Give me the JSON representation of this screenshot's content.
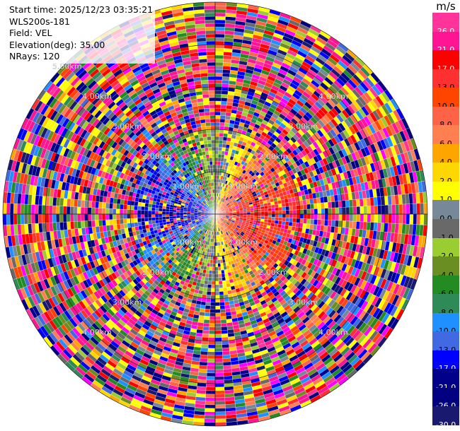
{
  "info": {
    "start_time": "Start time: 2025/12/23 03:35:21",
    "instrument": "WLS200s-181",
    "field": "Field: VEL",
    "elevation": "Elevation(deg): 35.00",
    "nrays": "NRays: 120"
  },
  "colorbar": {
    "unit": "m/s",
    "bins": [
      {
        "label": "26.0",
        "color": "#ff3399"
      },
      {
        "label": "21.0",
        "color": "#ff1493"
      },
      {
        "label": "17.0",
        "color": "#ff0000"
      },
      {
        "label": "13.0",
        "color": "#ff3030"
      },
      {
        "label": "10.0",
        "color": "#ff4500"
      },
      {
        "label": "8.0",
        "color": "#ff6347"
      },
      {
        "label": "6.0",
        "color": "#ff7f50"
      },
      {
        "label": "4.0",
        "color": "#ffa500"
      },
      {
        "label": "2.0",
        "color": "#ffd700"
      },
      {
        "label": "1.0",
        "color": "#ffff00"
      },
      {
        "label": "0.0",
        "color": "#778899"
      },
      {
        "label": "-1.0",
        "color": "#696969"
      },
      {
        "label": "-2.0",
        "color": "#9acd32"
      },
      {
        "label": "-4.0",
        "color": "#6b8e23"
      },
      {
        "label": "-6.0",
        "color": "#228b22"
      },
      {
        "label": "-8.0",
        "color": "#2e8b57"
      },
      {
        "label": "-10.0",
        "color": "#1e90ff"
      },
      {
        "label": "-13.0",
        "color": "#4169e1"
      },
      {
        "label": "-17.0",
        "color": "#0000ff"
      },
      {
        "label": "-21.0",
        "color": "#00008b"
      },
      {
        "label": "-26.0",
        "color": "#000080"
      },
      {
        "label": "-30.0",
        "color": "#191970"
      }
    ]
  },
  "chart_data": {
    "type": "heatmap",
    "projection": "polar-ppi",
    "field": "VEL",
    "elevation_deg": 35.0,
    "nrays": 120,
    "range_max_km": 5.0,
    "range_rings_km": [
      1,
      2,
      3,
      4,
      5
    ],
    "ring_labels": [
      "1.00km",
      "2.00km",
      "3.00km",
      "4.00km",
      "5.00km"
    ],
    "unit": "m/s",
    "vmin": -30,
    "vmax": 30,
    "pattern_notes": "Coherent radial velocity near center (approx <= 2 km): positive (red/pink) on east/northeast side, negative (blue/green) on west/southwest side; noisy random values beyond."
  }
}
